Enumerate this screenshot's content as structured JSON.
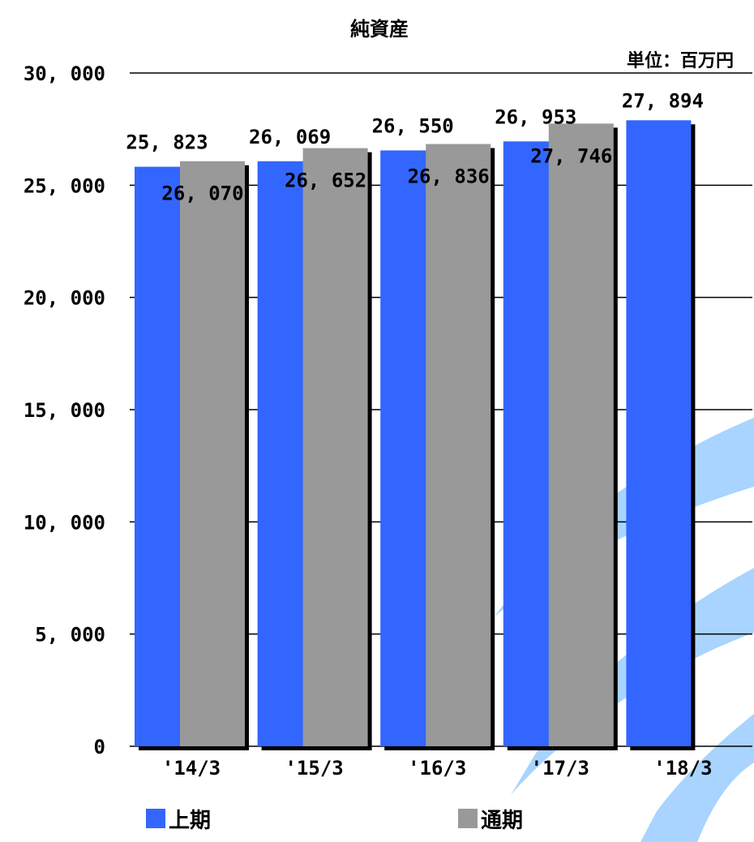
{
  "chart_data": {
    "type": "bar",
    "title": "純資産",
    "unit_label": "単位：百万円",
    "categories": [
      "'14/3",
      "'15/3",
      "'16/3",
      "'17/3",
      "'18/3"
    ],
    "series": [
      {
        "name": "上期",
        "color": "#3366ff",
        "values": [
          25823,
          26069,
          26550,
          26953,
          27894
        ],
        "labels": [
          "25, 823",
          "26, 069",
          "26, 550",
          "26, 953",
          "27, 894"
        ]
      },
      {
        "name": "通期",
        "color": "#999999",
        "values": [
          26070,
          26652,
          26836,
          27746,
          null
        ],
        "labels": [
          "26, 070",
          "26, 652",
          "26, 836",
          "27, 746",
          null
        ]
      }
    ],
    "y_ticks": [
      0,
      5000,
      10000,
      15000,
      20000,
      25000,
      30000
    ],
    "y_tick_labels": [
      "0",
      "5, 000",
      "10, 000",
      "15, 000",
      "20, 000",
      "25, 000",
      "30, 000"
    ],
    "ylim": [
      0,
      30000
    ],
    "grid": true,
    "legend_position": "bottom",
    "shadow_color": "#000000",
    "background_accent_color": "#99ccff"
  }
}
